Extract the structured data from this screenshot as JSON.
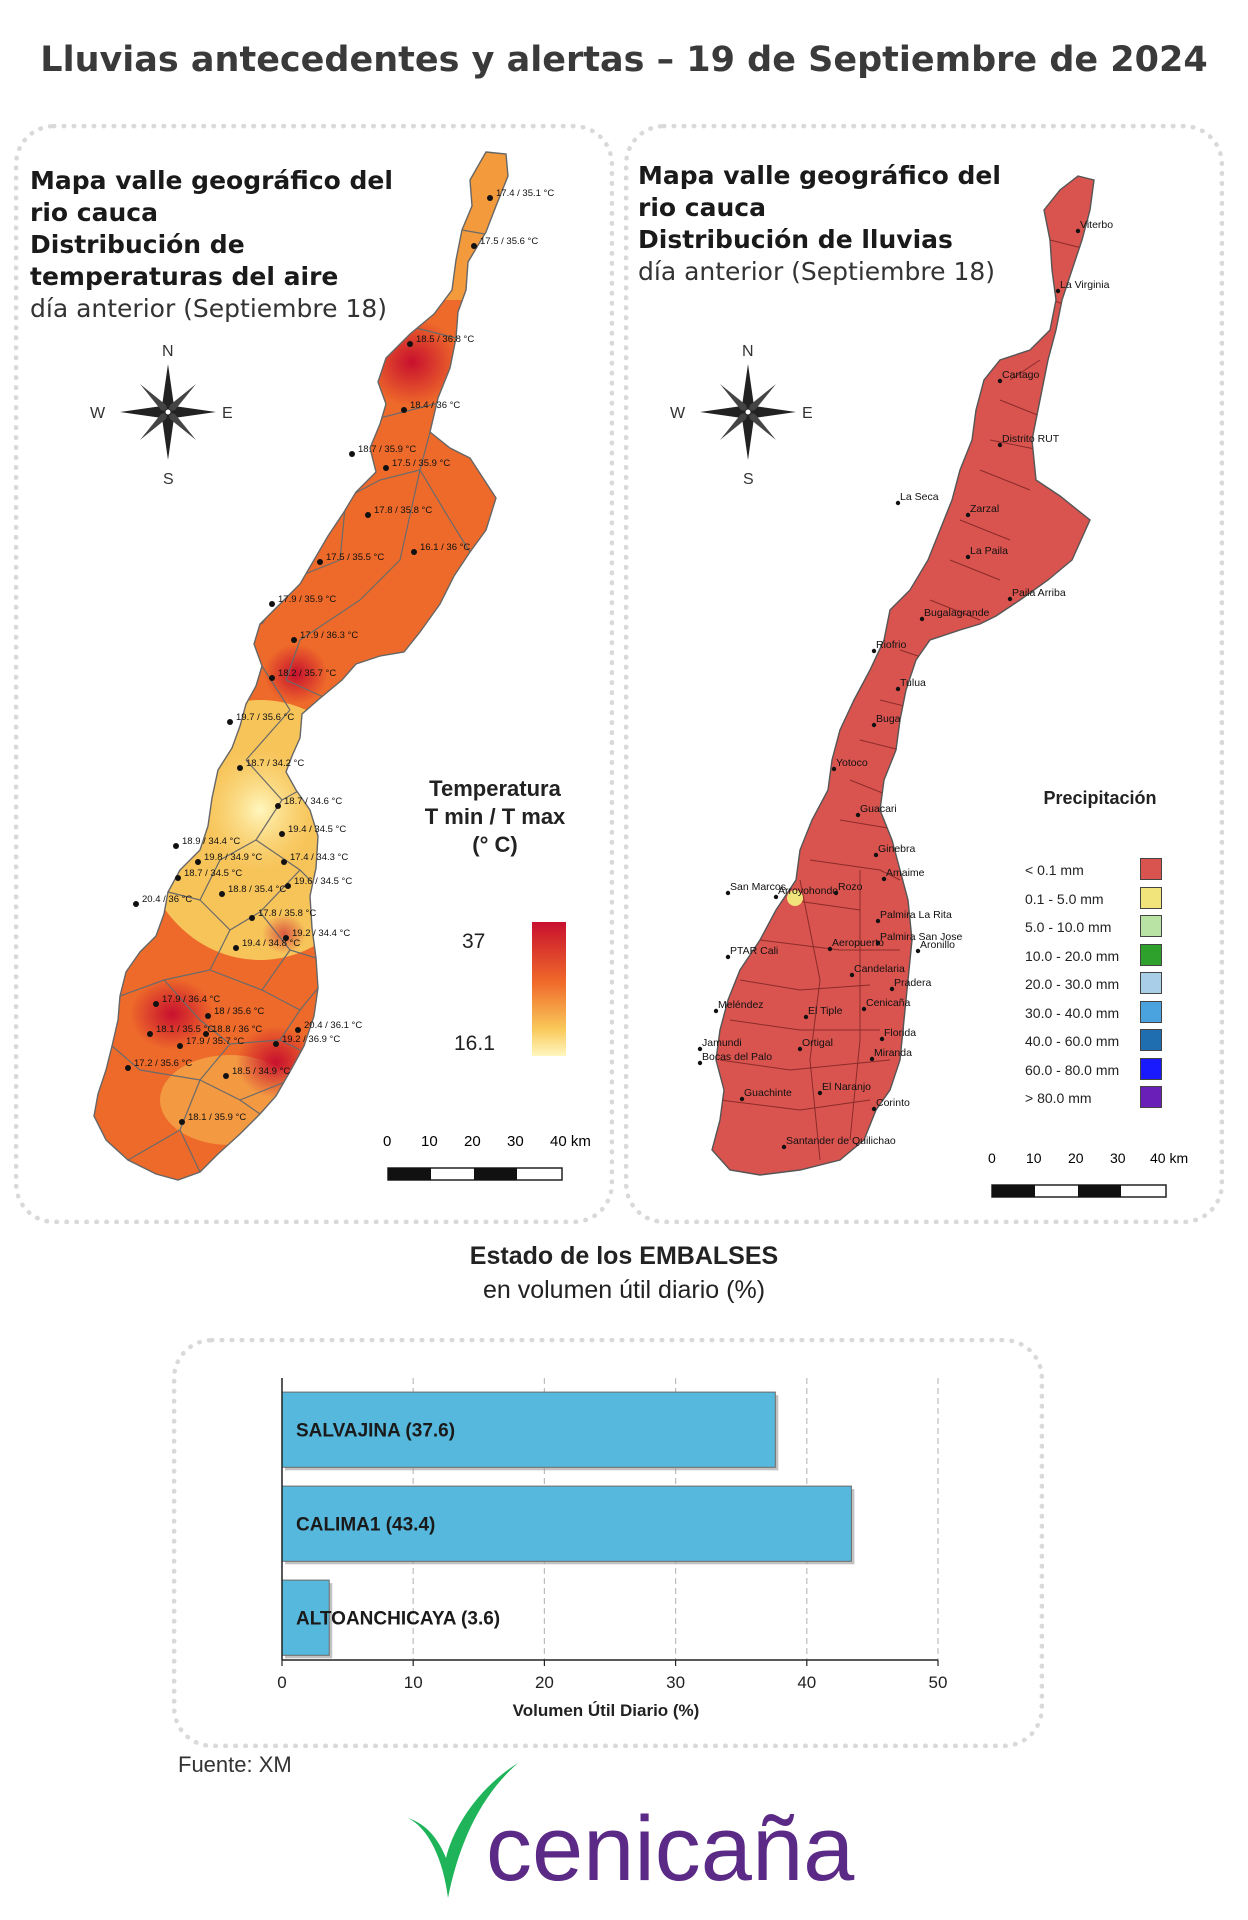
{
  "title": "Lluvias antecedentes y alertas – 19 de Septiembre de 2024",
  "temp_panel": {
    "title_lines": [
      "Mapa valle geográfico del",
      "rio cauca",
      "Distribución de",
      "temperaturas del aire"
    ],
    "subtitle": "día anterior (Septiembre 18)",
    "legend_title_1": "Temperatura",
    "legend_title_2": "T min / T max",
    "legend_title_3": "(° C)",
    "legend_max": "37",
    "legend_min": "16.1",
    "colors": {
      "hot": "#c8102e",
      "mid": "#ee6a2a",
      "cool": "#f9d56a",
      "coolest": "#fff7bf"
    },
    "stations": [
      {
        "label": "17.4 / 35.1 °C"
      },
      {
        "label": "17.5 / 35.6 °C"
      },
      {
        "label": "18.5 / 36.8 °C"
      },
      {
        "label": "18.4 / 36 °C"
      },
      {
        "label": "18.7 / 35.9 °C"
      },
      {
        "label": "17.5 / 35.9 °C"
      },
      {
        "label": "17.8 / 35.8 °C"
      },
      {
        "label": "16.1 / 36 °C"
      },
      {
        "label": "17.5 / 35.5 °C"
      },
      {
        "label": "17.9 / 35.9 °C"
      },
      {
        "label": "17.9 / 36.3 °C"
      },
      {
        "label": "18.2 / 35.7 °C"
      },
      {
        "label": "19.7 / 35.6 °C"
      },
      {
        "label": "18.7 / 34.2 °C"
      },
      {
        "label": "18.7 / 34.6 °C"
      },
      {
        "label": "19.4 / 34.5 °C"
      },
      {
        "label": "18.9 / 34.4 °C"
      },
      {
        "label": "19.8 / 34.9 °C"
      },
      {
        "label": "17.4 / 34.3 °C"
      },
      {
        "label": "18.7 / 34.5 °C"
      },
      {
        "label": "19.6 / 34.5 °C"
      },
      {
        "label": "18.8 / 35.4 °C"
      },
      {
        "label": "20.4 / 36 °C"
      },
      {
        "label": "17.8 / 35.8 °C"
      },
      {
        "label": "19.2 / 34.4 °C"
      },
      {
        "label": "19.4 / 34.8 °C"
      },
      {
        "label": "17.9 / 36.4 °C"
      },
      {
        "label": "18 / 35.6 °C"
      },
      {
        "label": "20.4 / 36.1 °C"
      },
      {
        "label": "18.1 / 35.5 °C"
      },
      {
        "label": "18.8 / 36 °C"
      },
      {
        "label": "19.2 / 36.9 °C"
      },
      {
        "label": "17.9 / 35.7 °C"
      },
      {
        "label": "17.2 / 35.6 °C"
      },
      {
        "label": "18.5 / 34.9 °C"
      },
      {
        "label": "18.1 / 35.9 °C"
      }
    ]
  },
  "rain_panel": {
    "title_lines": [
      "Mapa valle geográfico del",
      "rio cauca"
    ],
    "title_bold": "Distribución de lluvias",
    "subtitle": "día anterior (Septiembre 18)",
    "map_color": "#d9534f",
    "legend_title": "Precipitación",
    "legend": [
      {
        "label": "< 0.1 mm",
        "color": "#d9534f"
      },
      {
        "label": "0.1 - 5.0 mm",
        "color": "#f0e47a"
      },
      {
        "label": "5.0 - 10.0 mm",
        "color": "#b9e3a5"
      },
      {
        "label": "10.0 - 20.0 mm",
        "color": "#2ea02c"
      },
      {
        "label": "20.0 - 30.0 mm",
        "color": "#a9cfe8"
      },
      {
        "label": "30.0 - 40.0 mm",
        "color": "#4aa3df"
      },
      {
        "label": "40.0 - 60.0 mm",
        "color": "#1f6fb0"
      },
      {
        "label": "60.0 - 80.0 mm",
        "color": "#1a1aff"
      },
      {
        "label": "> 80.0 mm",
        "color": "#6a1fb8"
      }
    ],
    "places": [
      {
        "label": "Viterbo"
      },
      {
        "label": "La Virginia"
      },
      {
        "label": "Cartago"
      },
      {
        "label": "Distrito RUT"
      },
      {
        "label": "La Seca"
      },
      {
        "label": "Zarzal"
      },
      {
        "label": "La Paila"
      },
      {
        "label": "Paila Arriba"
      },
      {
        "label": "Bugalagrande"
      },
      {
        "label": "Riofrio"
      },
      {
        "label": "Tulua"
      },
      {
        "label": "Buga"
      },
      {
        "label": "Yotoco"
      },
      {
        "label": "Guacari"
      },
      {
        "label": "Ginebra"
      },
      {
        "label": "Amaime"
      },
      {
        "label": "San Marcos"
      },
      {
        "label": "Rozo"
      },
      {
        "label": "Palmira La Rita"
      },
      {
        "label": "Arroyohondo"
      },
      {
        "label": "Palmira San Jose"
      },
      {
        "label": "Aeropuerto"
      },
      {
        "label": "Aronillo"
      },
      {
        "label": "PTAR Cali"
      },
      {
        "label": "Candelaria"
      },
      {
        "label": "Pradera"
      },
      {
        "label": "Meléndez"
      },
      {
        "label": "Cenicaña"
      },
      {
        "label": "El Tiple"
      },
      {
        "label": "Florida"
      },
      {
        "label": "Jamundi"
      },
      {
        "label": "Ortigal"
      },
      {
        "label": "Bocas del Palo"
      },
      {
        "label": "Miranda"
      },
      {
        "label": "El Naranjo"
      },
      {
        "label": "Guachinte"
      },
      {
        "label": "Corinto"
      },
      {
        "label": "Santander de Quilichao"
      }
    ]
  },
  "compass": {
    "n": "N",
    "s": "S",
    "e": "E",
    "w": "W"
  },
  "scale": {
    "ticks": [
      "0",
      "10",
      "20",
      "30",
      "40 km"
    ]
  },
  "reservoirs": {
    "heading_bold": "Estado de los EMBALSES",
    "heading_sub": "en volumen útil diario (%)",
    "source": "Fuente: XM"
  },
  "chart_data": {
    "type": "bar",
    "orientation": "horizontal",
    "categories": [
      "SALVAJINA (37.6)",
      "CALIMA1 (43.4)",
      "ALTOANCHICAYA (3.6)"
    ],
    "values": [
      37.6,
      43.4,
      3.6
    ],
    "xlabel": "Volumen Útil Diario (%)",
    "ylabel": "",
    "xlim": [
      0,
      50
    ],
    "xticks": [
      "0",
      "10",
      "20",
      "30",
      "40",
      "50"
    ],
    "grid": "vertical dashed",
    "bar_color": "#55b8dc"
  },
  "logo": {
    "text": "cenicaña",
    "text_color": "#5b2a86",
    "leaf_color": "#1fb45a"
  }
}
